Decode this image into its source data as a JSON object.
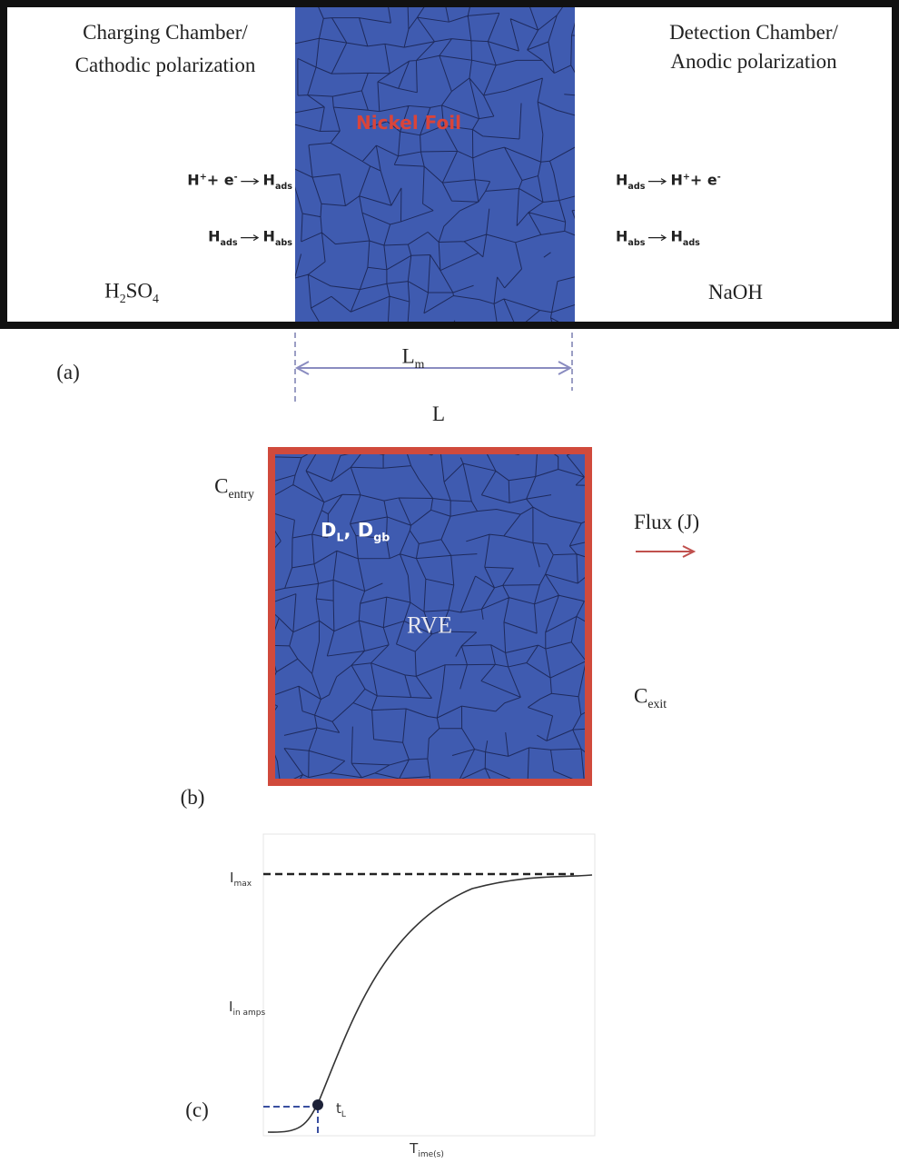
{
  "panel_a": {
    "left_title": [
      "Charging Chamber/",
      "Cathodic polarization"
    ],
    "right_title": [
      "Detection Chamber/",
      "Anodic polarization"
    ],
    "foil_label": "Nickel Foil",
    "left_reactions": [
      {
        "lhs": [
          {
            "text": "H",
            "sup": "+"
          },
          {
            "text": "+ e",
            "sup": "-"
          }
        ],
        "rhs": [
          {
            "text": "H",
            "sub": "ads"
          }
        ]
      },
      {
        "lhs": [
          {
            "text": "H",
            "sub": "ads"
          }
        ],
        "rhs": [
          {
            "text": "H",
            "sub": "abs"
          }
        ]
      }
    ],
    "right_reactions": [
      {
        "lhs": [
          {
            "text": "H",
            "sub": "ads"
          }
        ],
        "rhs": [
          {
            "text": "H",
            "sup": "+"
          },
          {
            "text": "+ e",
            "sup": "-"
          }
        ]
      },
      {
        "lhs": [
          {
            "text": "H",
            "sub": "abs"
          }
        ],
        "rhs": [
          {
            "text": "H",
            "sub": "ads"
          }
        ]
      }
    ],
    "left_solution": [
      {
        "text": "H",
        "sub": "2"
      },
      {
        "text": "SO",
        "sub": "4"
      }
    ],
    "right_solution": [
      {
        "text": "NaOH"
      }
    ],
    "tag": "(a)",
    "membrane_length": [
      {
        "text": "L",
        "sub": "m"
      }
    ],
    "length": "L"
  },
  "panel_b": {
    "entry": [
      {
        "text": "C",
        "sub": "entry"
      }
    ],
    "diffusivities": [
      {
        "text": "D",
        "sub": "L"
      },
      {
        "text": ", D",
        "sub": "gb"
      }
    ],
    "label": "RVE",
    "flux": "Flux (J)",
    "exit": [
      {
        "text": "C",
        "sub": "exit"
      }
    ],
    "tag": "(b)"
  },
  "panel_c": {
    "max": [
      {
        "text": "I",
        "sub": "max"
      }
    ],
    "y_label": [
      {
        "text": "I",
        "sub": "in amps"
      }
    ],
    "lag": [
      {
        "text": "t",
        "sub": "L"
      }
    ],
    "x_label": [
      {
        "text": "T",
        "sub": "ime(s)"
      }
    ],
    "tag": "(c)"
  }
}
